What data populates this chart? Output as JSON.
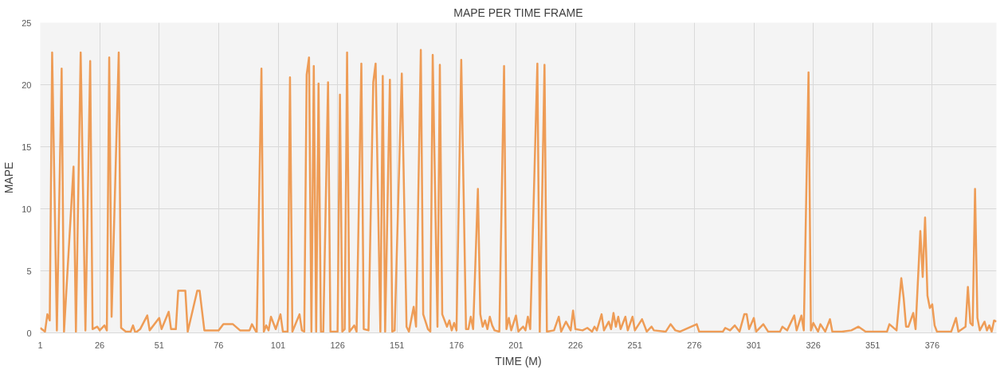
{
  "chart_data": {
    "type": "line",
    "title": "MAPE PER TIME FRAME",
    "xlabel": "TIME (M)",
    "ylabel": "MAPE",
    "xlim": [
      1,
      403
    ],
    "xticks": [
      1,
      26,
      51,
      76,
      101,
      126,
      151,
      176,
      201,
      226,
      251,
      276,
      301,
      326,
      351,
      376
    ],
    "ylim": [
      0,
      25
    ],
    "yticks": [
      0,
      5,
      10,
      15,
      20,
      25
    ],
    "grid": true,
    "marker": "none",
    "line_style": "solid",
    "series": [
      {
        "color": "#ee9c56",
        "x": [
          1,
          3,
          4,
          5,
          6,
          8,
          10,
          11,
          15,
          16,
          18,
          20,
          22,
          23,
          25,
          26,
          28,
          29,
          30,
          31,
          34,
          35,
          37,
          39,
          40,
          41,
          43,
          46,
          47,
          51,
          52,
          55,
          56,
          58,
          59,
          62,
          63,
          67,
          68,
          70,
          76,
          78,
          82,
          85,
          89,
          90,
          92,
          94,
          95,
          96,
          97,
          98,
          100,
          102,
          103,
          105,
          106,
          107,
          110,
          111,
          112,
          113,
          114,
          115,
          116,
          117,
          118,
          119,
          120,
          122,
          123,
          126,
          127,
          128,
          129,
          130,
          131,
          133,
          134,
          136,
          137,
          139,
          141,
          142,
          144,
          145,
          146,
          148,
          149,
          150,
          153,
          155,
          156,
          158,
          159,
          161,
          162,
          164,
          165,
          166,
          168,
          169,
          170,
          172,
          173,
          174,
          175,
          176,
          178,
          180,
          181,
          182,
          183,
          185,
          186,
          187,
          188,
          189,
          190,
          191,
          192,
          194,
          196,
          197,
          198,
          199,
          201,
          202,
          204,
          205,
          206,
          207,
          210,
          211,
          213,
          214,
          217,
          219,
          220,
          222,
          224,
          225,
          226,
          229,
          231,
          233,
          234,
          235,
          237,
          238,
          240,
          241,
          242,
          243,
          244,
          245,
          247,
          248,
          250,
          251,
          254,
          256,
          258,
          259,
          264,
          266,
          268,
          270,
          277,
          278,
          282,
          288,
          289,
          291,
          293,
          295,
          297,
          298,
          299,
          301,
          302,
          305,
          307,
          312,
          313,
          315,
          318,
          319,
          321,
          322,
          324,
          325,
          326,
          328,
          329,
          331,
          333,
          334,
          338,
          342,
          345,
          348,
          357,
          358,
          361,
          363,
          364,
          365,
          366,
          368,
          369,
          371,
          372,
          373,
          374,
          375,
          376,
          377,
          378,
          384,
          386,
          387,
          390,
          391,
          392,
          393,
          394,
          395,
          396,
          398,
          399,
          400,
          401,
          402,
          403
        ],
        "values": [
          0.4,
          0.1,
          1.5,
          1.0,
          22.6,
          0.2,
          21.3,
          0.1,
          13.4,
          0.1,
          22.6,
          0.2,
          21.9,
          0.3,
          0.5,
          0.2,
          0.6,
          0.2,
          22.2,
          1.3,
          22.6,
          0.4,
          0.1,
          0.1,
          0.6,
          0.0,
          0.3,
          1.4,
          0.2,
          1.2,
          0.3,
          1.7,
          0.3,
          0.3,
          3.4,
          3.4,
          0.1,
          3.4,
          3.4,
          0.2,
          0.2,
          0.7,
          0.7,
          0.2,
          0.2,
          0.7,
          0.0,
          21.3,
          0.1,
          0.6,
          0.2,
          1.3,
          0.3,
          1.5,
          0.1,
          0.1,
          20.6,
          0.1,
          1.5,
          0.2,
          0.1,
          20.8,
          22.2,
          0.1,
          21.5,
          0.1,
          20.1,
          0.1,
          0.1,
          20.2,
          0.1,
          0.1,
          19.2,
          0.1,
          0.3,
          22.6,
          0.1,
          0.6,
          0.1,
          21.7,
          0.3,
          0.2,
          20.2,
          21.7,
          0.1,
          20.7,
          0.1,
          20.4,
          0.1,
          0.2,
          20.9,
          0.5,
          0.1,
          2.1,
          0.5,
          22.8,
          1.5,
          0.3,
          0.1,
          22.4,
          0.5,
          21.6,
          1.5,
          0.5,
          1.0,
          0.2,
          0.8,
          0.2,
          22.0,
          0.3,
          0.3,
          1.3,
          0.3,
          11.6,
          1.5,
          0.5,
          1.0,
          0.3,
          1.3,
          0.6,
          0.2,
          0.1,
          21.5,
          0.3,
          1.2,
          0.2,
          1.4,
          0.1,
          0.5,
          0.2,
          1.3,
          0.3,
          21.7,
          0.0,
          21.6,
          0.1,
          0.2,
          1.3,
          0.1,
          0.9,
          0.2,
          1.8,
          0.3,
          0.2,
          0.4,
          0.1,
          0.5,
          0.2,
          1.5,
          0.2,
          0.9,
          0.3,
          1.6,
          0.5,
          1.3,
          0.3,
          1.3,
          0.2,
          1.3,
          0.2,
          1.1,
          0.1,
          0.5,
          0.2,
          0.1,
          0.7,
          0.2,
          0.1,
          0.7,
          0.1,
          0.1,
          0.1,
          0.4,
          0.2,
          0.6,
          0.1,
          1.5,
          1.5,
          0.3,
          1.2,
          0.1,
          0.7,
          0.1,
          0.1,
          0.5,
          0.2,
          1.4,
          0.2,
          1.4,
          0.2,
          21.0,
          0.2,
          0.8,
          0.1,
          0.7,
          0.1,
          1.1,
          0.1,
          0.1,
          0.2,
          0.5,
          0.1,
          0.1,
          0.7,
          0.2,
          4.4,
          2.8,
          0.5,
          0.5,
          1.6,
          0.3,
          8.2,
          4.5,
          9.3,
          3.0,
          2.0,
          2.3,
          0.6,
          0.1,
          0.1,
          1.2,
          0.1,
          0.5,
          3.7,
          0.8,
          0.6,
          11.6,
          1.2,
          0.2,
          0.9,
          0.2,
          0.6,
          0.1,
          1.0,
          0.9
        ]
      }
    ]
  }
}
